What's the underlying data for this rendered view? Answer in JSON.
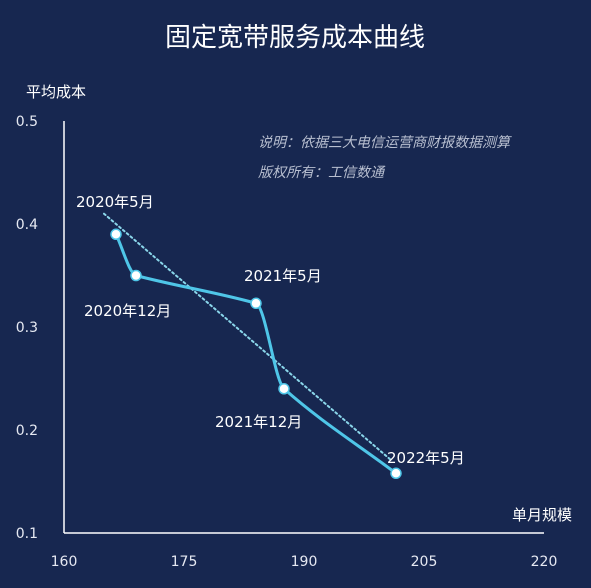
{
  "chart_data": {
    "type": "line",
    "title": "固定宽带服务成本曲线",
    "xlabel": "单月规模",
    "ylabel": "平均成本",
    "xlim": [
      160,
      220
    ],
    "ylim": [
      0.1,
      0.5
    ],
    "x_ticks": [
      "160",
      "175",
      "190",
      "205",
      "220"
    ],
    "y_ticks": [
      "0.1",
      "0.2",
      "0.3",
      "0.4",
      "0.5"
    ],
    "notes": [
      "说明：依据三大电信运营商财报数据测算",
      "版权所有：工信数通"
    ],
    "grid": false,
    "colors": {
      "line": "#4fc6e8",
      "trend": "#8ad6ea",
      "marker": "#ffffff",
      "axis": "#ffffff"
    },
    "series": [
      {
        "points": [
          {
            "label": "2020年5月",
            "x": 166.5,
            "y": 0.39
          },
          {
            "label": "2020年12月",
            "x": 169,
            "y": 0.35
          },
          {
            "label": "2021年5月",
            "x": 184,
            "y": 0.323
          },
          {
            "label": "2021年12月",
            "x": 187.5,
            "y": 0.24
          },
          {
            "label": "2022年5月",
            "x": 201.5,
            "y": 0.158
          }
        ]
      }
    ],
    "trendline": {
      "style": "dotted",
      "points": [
        {
          "x": 165,
          "y": 0.41
        },
        {
          "x": 201,
          "y": 0.17
        }
      ]
    }
  }
}
